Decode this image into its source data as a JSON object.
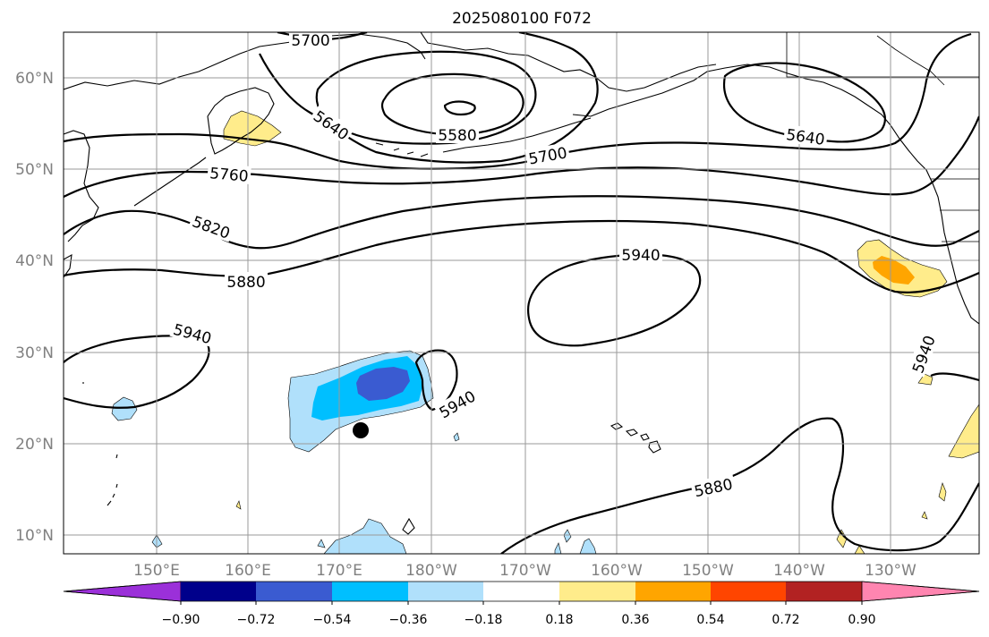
{
  "title": "2025080100 F072",
  "axes": {
    "lat_labels": [
      "60°N",
      "50°N",
      "40°N",
      "30°N",
      "20°N",
      "10°N"
    ],
    "lon_labels": [
      "150°E",
      "160°E",
      "170°E",
      "180°W",
      "170°W",
      "160°W",
      "150°W",
      "140°W",
      "130°W"
    ],
    "grid": true
  },
  "contour_levels": [
    "5580",
    "5640",
    "5700",
    "5760",
    "5820",
    "5880",
    "5940"
  ],
  "contour_labels": [
    {
      "text": "5700"
    },
    {
      "text": "5640"
    },
    {
      "text": "5580"
    },
    {
      "text": "5700"
    },
    {
      "text": "5640"
    },
    {
      "text": "5760"
    },
    {
      "text": "5820"
    },
    {
      "text": "5880"
    },
    {
      "text": "5940"
    },
    {
      "text": "5940"
    },
    {
      "text": "5940"
    },
    {
      "text": "5940"
    },
    {
      "text": "5880"
    }
  ],
  "colorbar": {
    "ticks": [
      "−0.90",
      "−0.72",
      "−0.54",
      "−0.36",
      "−0.18",
      "0.18",
      "0.36",
      "0.54",
      "0.72",
      "0.90"
    ],
    "colors": [
      "#9b30d9",
      "#00008b",
      "#3a5bd1",
      "#00bfff",
      "#b0e0fb",
      "#ffffff",
      "#ffec8b",
      "#ffa500",
      "#ff4500",
      "#b22222",
      "#ff85b0"
    ],
    "extend": "both"
  },
  "marker": {
    "name": "storm-position",
    "color": "#000000"
  }
}
